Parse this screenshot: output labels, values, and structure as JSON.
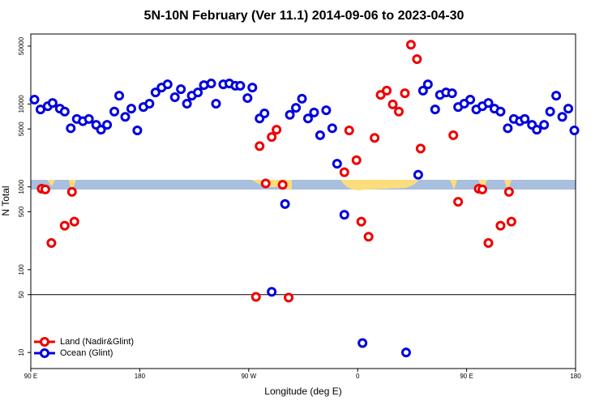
{
  "chart_data": {
    "type": "scatter",
    "title": "5N-10N February (Ver 11.1)   2014-09-06 to 2023-04-30",
    "x_label": "Longitude (deg E)",
    "y_label": "N Total",
    "log_y": true,
    "legend": "bottom-left",
    "reference_line": 50,
    "xlim": [
      90,
      540
    ],
    "xticks": [
      {
        "value": 90,
        "label": "90 E"
      },
      180,
      {
        "value": 270,
        "label": "90 W"
      },
      {
        "value": 360,
        "label": "0"
      },
      {
        "value": 450,
        "label": "90 E"
      },
      {
        "value": 540,
        "label": "180"
      }
    ],
    "ylim": [
      6.4,
      70000
    ],
    "yticks": [
      10,
      50,
      100,
      500,
      1000,
      5000,
      10000,
      50000
    ],
    "series": [
      {
        "name": "Land (Nadir&Glint)",
        "color": "#ee0000",
        "x": [
          99,
          102,
          107,
          118,
          124,
          126,
          276,
          279,
          284,
          289,
          293,
          298,
          303,
          349,
          353,
          359,
          363,
          369,
          374,
          379,
          384,
          389,
          394,
          399,
          404,
          409,
          412,
          439,
          443,
          460,
          463,
          468,
          478,
          485,
          487
        ],
        "values": [
          950,
          930,
          210,
          340,
          870,
          380,
          47,
          3100,
          1100,
          4000,
          4900,
          1060,
          46,
          1500,
          4800,
          2100,
          380,
          250,
          3900,
          12900,
          14500,
          9900,
          8100,
          13500,
          52000,
          34800,
          2900,
          4200,
          660,
          950,
          930,
          210,
          340,
          870,
          380
        ]
      },
      {
        "name": "Ocean (Glint)",
        "color": "#0000dd",
        "x": [
          93,
          98,
          104,
          108,
          114,
          118,
          123,
          128,
          133,
          138,
          144,
          148,
          153,
          159,
          163,
          168,
          173,
          178,
          183,
          188,
          193,
          198,
          203,
          209,
          214,
          219,
          223,
          228,
          233,
          239,
          243,
          249,
          254,
          259,
          263,
          269,
          273,
          279,
          283,
          289,
          300,
          304,
          309,
          314,
          319,
          324,
          329,
          334,
          339,
          343,
          349,
          364,
          400,
          410,
          414,
          418,
          424,
          428,
          433,
          438,
          443,
          448,
          453,
          458,
          463,
          468,
          473,
          478,
          484,
          489,
          494,
          498,
          504,
          508,
          514,
          519,
          524,
          529,
          534,
          539
        ],
        "values": [
          11300,
          8600,
          9400,
          10300,
          8800,
          8100,
          5100,
          6600,
          6200,
          6600,
          5600,
          4900,
          5600,
          8100,
          12600,
          7000,
          8800,
          4800,
          9200,
          10100,
          13800,
          15800,
          17300,
          12100,
          15100,
          10100,
          12600,
          13800,
          16900,
          17700,
          10100,
          17300,
          17700,
          16600,
          16600,
          11800,
          15800,
          6700,
          7700,
          54,
          620,
          7400,
          9000,
          11600,
          6700,
          7900,
          4200,
          8400,
          5100,
          1900,
          460,
          13,
          10,
          1400,
          14500,
          17300,
          8600,
          12900,
          13800,
          13500,
          9200,
          10100,
          11300,
          8600,
          9400,
          10300,
          8800,
          8100,
          5100,
          6600,
          6200,
          6600,
          5600,
          4900,
          5600,
          8100,
          12600,
          7000,
          8800,
          4800
        ]
      }
    ]
  }
}
